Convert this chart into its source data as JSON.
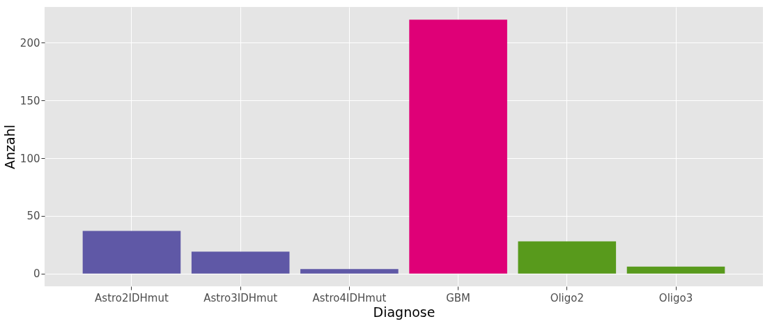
{
  "chart_data": {
    "type": "bar",
    "xlabel": "Diagnose",
    "ylabel": "Anzahl",
    "categories": [
      "Astro2IDHmut",
      "Astro3IDHmut",
      "Astro4IDHmut",
      "GBM",
      "Oligo2",
      "Oligo3"
    ],
    "values": [
      37,
      19,
      4,
      220,
      28,
      6
    ],
    "colors": [
      "#5f58a6",
      "#5f58a6",
      "#5f58a6",
      "#df0077",
      "#589a1c",
      "#589a1c"
    ],
    "ylim": [
      -11,
      231
    ],
    "yticks": [
      0,
      50,
      100,
      150,
      200
    ],
    "grid": true
  }
}
